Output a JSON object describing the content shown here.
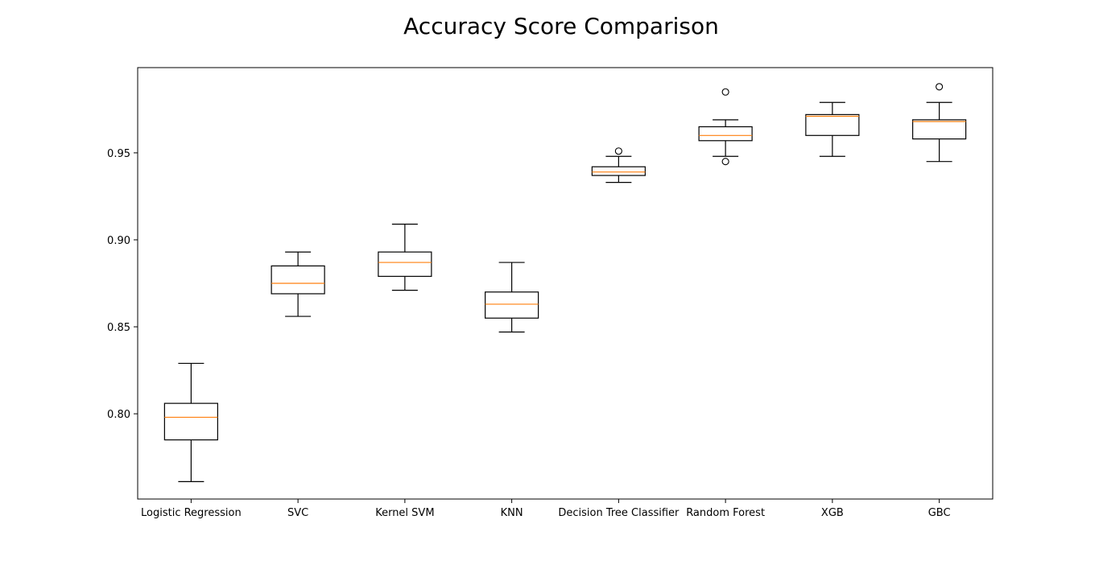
{
  "chart_data": {
    "type": "box",
    "title": "Accuracy Score Comparison",
    "xlabel": "",
    "ylabel": "",
    "categories": [
      "Logistic Regression",
      "SVC",
      "Kernel SVM",
      "KNN",
      "Decision Tree Classifier",
      "Random Forest",
      "XGB",
      "GBC"
    ],
    "boxes": [
      {
        "whisker_low": 0.761,
        "q1": 0.785,
        "median": 0.798,
        "q3": 0.806,
        "whisker_high": 0.829,
        "outliers": []
      },
      {
        "whisker_low": 0.856,
        "q1": 0.869,
        "median": 0.875,
        "q3": 0.885,
        "whisker_high": 0.893,
        "outliers": []
      },
      {
        "whisker_low": 0.871,
        "q1": 0.879,
        "median": 0.887,
        "q3": 0.893,
        "whisker_high": 0.909,
        "outliers": []
      },
      {
        "whisker_low": 0.847,
        "q1": 0.855,
        "median": 0.863,
        "q3": 0.87,
        "whisker_high": 0.887,
        "outliers": []
      },
      {
        "whisker_low": 0.933,
        "q1": 0.937,
        "median": 0.939,
        "q3": 0.942,
        "whisker_high": 0.948,
        "outliers": [
          0.951
        ]
      },
      {
        "whisker_low": 0.948,
        "q1": 0.957,
        "median": 0.96,
        "q3": 0.965,
        "whisker_high": 0.969,
        "outliers": [
          0.985,
          0.945
        ]
      },
      {
        "whisker_low": 0.948,
        "q1": 0.96,
        "median": 0.971,
        "q3": 0.972,
        "whisker_high": 0.979,
        "outliers": []
      },
      {
        "whisker_low": 0.945,
        "q1": 0.958,
        "median": 0.968,
        "q3": 0.969,
        "whisker_high": 0.979,
        "outliers": [
          0.988
        ]
      }
    ],
    "ylim": [
      0.751,
      0.999
    ],
    "yticks": [
      0.8,
      0.85,
      0.9,
      0.95
    ],
    "ytick_labels": [
      "0.80",
      "0.85",
      "0.90",
      "0.95"
    ],
    "grid": false,
    "legend": "none",
    "colors": {
      "box": "#000000",
      "median": "#ff7f0e",
      "background": "#ffffff"
    }
  }
}
